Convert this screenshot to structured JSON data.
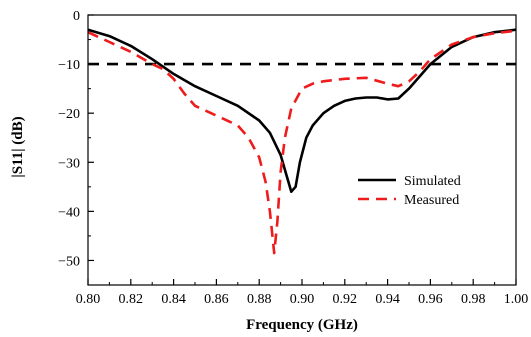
{
  "chart_data": {
    "type": "line",
    "xlabel": "Frequency (GHz)",
    "ylabel": "|S11| (dB)",
    "xlim": [
      0.8,
      1.0
    ],
    "ylim": [
      -55,
      0
    ],
    "xticks": [
      "0.80",
      "0.82",
      "0.84",
      "0.86",
      "0.88",
      "0.90",
      "0.92",
      "0.94",
      "0.96",
      "0.98",
      "1.00"
    ],
    "yticks": [
      "0",
      "−10",
      "−20",
      "−30",
      "−40",
      "−50"
    ],
    "legend_position": "center-right",
    "grid": false,
    "reference_line": {
      "y": -10,
      "style": "dashed",
      "color": "#000000"
    },
    "series": [
      {
        "name": "Simulated",
        "color": "#000000",
        "style": "solid",
        "x": [
          0.8,
          0.81,
          0.82,
          0.83,
          0.84,
          0.85,
          0.86,
          0.87,
          0.88,
          0.885,
          0.89,
          0.893,
          0.895,
          0.897,
          0.899,
          0.902,
          0.905,
          0.91,
          0.915,
          0.92,
          0.925,
          0.93,
          0.935,
          0.94,
          0.945,
          0.95,
          0.955,
          0.96,
          0.97,
          0.98,
          0.99,
          1.0
        ],
        "y": [
          -3.0,
          -4.3,
          -6.3,
          -9.0,
          -12.0,
          -14.5,
          -16.5,
          -18.5,
          -21.5,
          -24.0,
          -28.5,
          -33.0,
          -36.0,
          -35.0,
          -30.0,
          -25.0,
          -22.5,
          -20.0,
          -18.5,
          -17.5,
          -17.0,
          -16.8,
          -16.8,
          -17.2,
          -17.0,
          -15.0,
          -12.5,
          -10.0,
          -6.5,
          -4.5,
          -3.5,
          -3.0
        ]
      },
      {
        "name": "Measured",
        "color": "#ee1c1c",
        "style": "dashed",
        "x": [
          0.8,
          0.81,
          0.82,
          0.83,
          0.835,
          0.84,
          0.845,
          0.85,
          0.86,
          0.87,
          0.875,
          0.88,
          0.883,
          0.885,
          0.887,
          0.8885,
          0.89,
          0.892,
          0.895,
          0.9,
          0.905,
          0.91,
          0.92,
          0.93,
          0.94,
          0.945,
          0.95,
          0.955,
          0.96,
          0.97,
          0.98,
          0.99,
          1.0
        ],
        "y": [
          -3.5,
          -5.5,
          -7.5,
          -10.0,
          -11.0,
          -13.0,
          -16.0,
          -18.5,
          -20.5,
          -22.5,
          -25.0,
          -29.0,
          -34.0,
          -40.0,
          -48.5,
          -42.0,
          -32.0,
          -25.0,
          -19.0,
          -15.0,
          -14.0,
          -13.5,
          -13.0,
          -12.8,
          -14.0,
          -14.5,
          -13.5,
          -11.5,
          -9.0,
          -6.0,
          -4.5,
          -3.7,
          -3.2
        ]
      }
    ]
  }
}
